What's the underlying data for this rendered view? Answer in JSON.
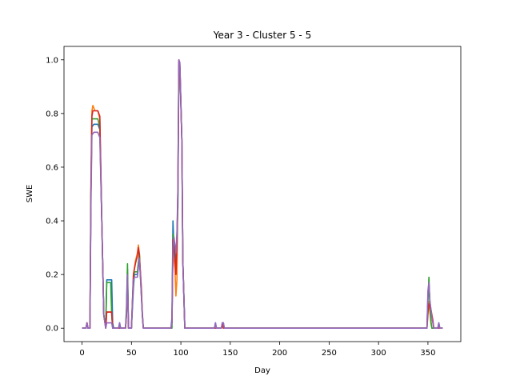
{
  "chart_data": {
    "type": "line",
    "title": "Year 3 - Cluster 5 - 5",
    "xlabel": "Day",
    "ylabel": "SWE",
    "xlim": [
      -18.25,
      383.25
    ],
    "ylim": [
      -0.05,
      1.05
    ],
    "xticks": [
      0,
      50,
      100,
      150,
      200,
      250,
      300,
      350
    ],
    "yticks": [
      0.0,
      0.2,
      0.4,
      0.6,
      0.8,
      1.0
    ],
    "xtick_labels": [
      "0",
      "50",
      "100",
      "150",
      "200",
      "250",
      "300",
      "350"
    ],
    "ytick_labels": [
      "0.0",
      "0.2",
      "0.4",
      "0.6",
      "0.8",
      "1.0"
    ],
    "grid": false,
    "series": [
      {
        "color": "#1f77b4",
        "points": [
          [
            0,
            0
          ],
          [
            4,
            0
          ],
          [
            5,
            0.02
          ],
          [
            6,
            0
          ],
          [
            8,
            0
          ],
          [
            9,
            0.5
          ],
          [
            10,
            0.75
          ],
          [
            12,
            0.76
          ],
          [
            16,
            0.76
          ],
          [
            18,
            0.74
          ],
          [
            20,
            0.4
          ],
          [
            22,
            0.05
          ],
          [
            24,
            0
          ],
          [
            25,
            0.18
          ],
          [
            26,
            0.18
          ],
          [
            30,
            0.18
          ],
          [
            31,
            0.02
          ],
          [
            32,
            0
          ],
          [
            37,
            0
          ],
          [
            38,
            0.02
          ],
          [
            39,
            0
          ],
          [
            44,
            0
          ],
          [
            45,
            0.06
          ],
          [
            46,
            0.22
          ],
          [
            47,
            0
          ],
          [
            50,
            0
          ],
          [
            52,
            0.15
          ],
          [
            53,
            0.2
          ],
          [
            56,
            0.2
          ],
          [
            58,
            0.28
          ],
          [
            59,
            0.2
          ],
          [
            61,
            0.06
          ],
          [
            62,
            0
          ],
          [
            90,
            0
          ],
          [
            91,
            0.04
          ],
          [
            92,
            0.4
          ],
          [
            93,
            0.3
          ],
          [
            95,
            0.25
          ],
          [
            97,
            0.45
          ],
          [
            98,
            0.98
          ],
          [
            99,
            0.97
          ],
          [
            101,
            0.7
          ],
          [
            102,
            0.25
          ],
          [
            104,
            0
          ],
          [
            134,
            0
          ],
          [
            135,
            0.02
          ],
          [
            136,
            0
          ],
          [
            141,
            0
          ],
          [
            142,
            0.02
          ],
          [
            143,
            0.02
          ],
          [
            144,
            0
          ],
          [
            349,
            0
          ],
          [
            350,
            0.12
          ],
          [
            351,
            0.16
          ],
          [
            352,
            0.1
          ],
          [
            354,
            0.04
          ],
          [
            356,
            0
          ],
          [
            360,
            0
          ],
          [
            361,
            0.02
          ],
          [
            362,
            0
          ],
          [
            365,
            0
          ]
        ]
      },
      {
        "color": "#ff7f0e",
        "points": [
          [
            0,
            0
          ],
          [
            4,
            0
          ],
          [
            5,
            0.02
          ],
          [
            6,
            0
          ],
          [
            8,
            0
          ],
          [
            9,
            0.55
          ],
          [
            10,
            0.81
          ],
          [
            11,
            0.83
          ],
          [
            13,
            0.81
          ],
          [
            16,
            0.81
          ],
          [
            18,
            0.78
          ],
          [
            20,
            0.4
          ],
          [
            22,
            0.05
          ],
          [
            24,
            0
          ],
          [
            25,
            0.06
          ],
          [
            26,
            0.06
          ],
          [
            30,
            0.06
          ],
          [
            31,
            0
          ],
          [
            44,
            0
          ],
          [
            45,
            0.05
          ],
          [
            46,
            0.2
          ],
          [
            47,
            0
          ],
          [
            50,
            0
          ],
          [
            52,
            0.2
          ],
          [
            54,
            0.25
          ],
          [
            56,
            0.28
          ],
          [
            57,
            0.31
          ],
          [
            58,
            0.28
          ],
          [
            60,
            0.15
          ],
          [
            61,
            0.05
          ],
          [
            62,
            0
          ],
          [
            90,
            0
          ],
          [
            91,
            0.02
          ],
          [
            92,
            0.3
          ],
          [
            94,
            0.22
          ],
          [
            95,
            0.12
          ],
          [
            96,
            0.18
          ],
          [
            97,
            0.55
          ],
          [
            98,
            1.0
          ],
          [
            99,
            0.98
          ],
          [
            101,
            0.7
          ],
          [
            102,
            0.25
          ],
          [
            104,
            0
          ],
          [
            141,
            0
          ],
          [
            142,
            0.02
          ],
          [
            143,
            0
          ],
          [
            349,
            0
          ],
          [
            350,
            0.05
          ],
          [
            351,
            0.1
          ],
          [
            352,
            0.06
          ],
          [
            354,
            0
          ],
          [
            365,
            0
          ]
        ]
      },
      {
        "color": "#2ca02c",
        "points": [
          [
            0,
            0
          ],
          [
            4,
            0
          ],
          [
            5,
            0.02
          ],
          [
            6,
            0
          ],
          [
            8,
            0
          ],
          [
            9,
            0.5
          ],
          [
            10,
            0.78
          ],
          [
            12,
            0.78
          ],
          [
            16,
            0.78
          ],
          [
            18,
            0.75
          ],
          [
            20,
            0.4
          ],
          [
            22,
            0.05
          ],
          [
            24,
            0
          ],
          [
            25,
            0.17
          ],
          [
            26,
            0.17
          ],
          [
            29,
            0.17
          ],
          [
            30,
            0.05
          ],
          [
            31,
            0
          ],
          [
            44,
            0
          ],
          [
            45,
            0.08
          ],
          [
            46,
            0.24
          ],
          [
            47,
            0
          ],
          [
            50,
            0
          ],
          [
            52,
            0.18
          ],
          [
            53,
            0.21
          ],
          [
            56,
            0.21
          ],
          [
            58,
            0.28
          ],
          [
            59,
            0.2
          ],
          [
            61,
            0.05
          ],
          [
            62,
            0
          ],
          [
            90,
            0
          ],
          [
            91,
            0
          ],
          [
            92,
            0.35
          ],
          [
            94,
            0.28
          ],
          [
            96,
            0.3
          ],
          [
            97,
            0.5
          ],
          [
            98,
            0.99
          ],
          [
            99,
            0.97
          ],
          [
            101,
            0.7
          ],
          [
            102,
            0.25
          ],
          [
            104,
            0
          ],
          [
            141,
            0
          ],
          [
            142,
            0.02
          ],
          [
            143,
            0
          ],
          [
            349,
            0
          ],
          [
            350,
            0.1
          ],
          [
            351,
            0.19
          ],
          [
            352,
            0.08
          ],
          [
            353,
            0.02
          ],
          [
            354,
            0
          ],
          [
            365,
            0
          ]
        ]
      },
      {
        "color": "#d62728",
        "points": [
          [
            0,
            0
          ],
          [
            4,
            0
          ],
          [
            5,
            0.02
          ],
          [
            6,
            0
          ],
          [
            8,
            0
          ],
          [
            9,
            0.5
          ],
          [
            10,
            0.79
          ],
          [
            11,
            0.81
          ],
          [
            16,
            0.81
          ],
          [
            18,
            0.79
          ],
          [
            20,
            0.4
          ],
          [
            22,
            0.05
          ],
          [
            24,
            0
          ],
          [
            25,
            0.06
          ],
          [
            26,
            0.06
          ],
          [
            30,
            0.06
          ],
          [
            31,
            0
          ],
          [
            44,
            0
          ],
          [
            45,
            0.05
          ],
          [
            46,
            0.18
          ],
          [
            47,
            0
          ],
          [
            50,
            0
          ],
          [
            52,
            0.2
          ],
          [
            54,
            0.24
          ],
          [
            56,
            0.27
          ],
          [
            57,
            0.3
          ],
          [
            58,
            0.27
          ],
          [
            60,
            0.15
          ],
          [
            61,
            0.05
          ],
          [
            62,
            0
          ],
          [
            90,
            0
          ],
          [
            91,
            0.02
          ],
          [
            92,
            0.33
          ],
          [
            94,
            0.26
          ],
          [
            95,
            0.2
          ],
          [
            96,
            0.3
          ],
          [
            97,
            0.52
          ],
          [
            98,
            1.0
          ],
          [
            99,
            0.98
          ],
          [
            101,
            0.7
          ],
          [
            102,
            0.25
          ],
          [
            104,
            0
          ],
          [
            141,
            0
          ],
          [
            142,
            0.02
          ],
          [
            143,
            0
          ],
          [
            349,
            0
          ],
          [
            350,
            0.06
          ],
          [
            351,
            0.09
          ],
          [
            353,
            0.07
          ],
          [
            355,
            0.03
          ],
          [
            356,
            0
          ],
          [
            365,
            0
          ]
        ]
      },
      {
        "color": "#9467bd",
        "points": [
          [
            0,
            0
          ],
          [
            4,
            0
          ],
          [
            5,
            0.02
          ],
          [
            6,
            0
          ],
          [
            8,
            0
          ],
          [
            9,
            0.45
          ],
          [
            10,
            0.72
          ],
          [
            12,
            0.73
          ],
          [
            16,
            0.73
          ],
          [
            18,
            0.71
          ],
          [
            20,
            0.4
          ],
          [
            22,
            0.05
          ],
          [
            24,
            0
          ],
          [
            25,
            0.02
          ],
          [
            26,
            0.02
          ],
          [
            30,
            0.02
          ],
          [
            31,
            0
          ],
          [
            37,
            0
          ],
          [
            38,
            0.02
          ],
          [
            39,
            0
          ],
          [
            44,
            0
          ],
          [
            45,
            0.05
          ],
          [
            46,
            0.2
          ],
          [
            47,
            0
          ],
          [
            50,
            0
          ],
          [
            52,
            0.18
          ],
          [
            53,
            0.19
          ],
          [
            56,
            0.19
          ],
          [
            58,
            0.26
          ],
          [
            59,
            0.2
          ],
          [
            61,
            0.05
          ],
          [
            62,
            0
          ],
          [
            90,
            0
          ],
          [
            91,
            0.02
          ],
          [
            92,
            0.3
          ],
          [
            93,
            0.34
          ],
          [
            95,
            0.28
          ],
          [
            96,
            0.35
          ],
          [
            97,
            0.52
          ],
          [
            98,
            1.0
          ],
          [
            99,
            0.99
          ],
          [
            101,
            0.7
          ],
          [
            102,
            0.25
          ],
          [
            104,
            0
          ],
          [
            134,
            0
          ],
          [
            135,
            0.02
          ],
          [
            136,
            0
          ],
          [
            141,
            0
          ],
          [
            142,
            0.02
          ],
          [
            143,
            0.02
          ],
          [
            144,
            0
          ],
          [
            349,
            0
          ],
          [
            350,
            0.14
          ],
          [
            351,
            0.17
          ],
          [
            352,
            0.1
          ],
          [
            354,
            0.04
          ],
          [
            356,
            0
          ],
          [
            360,
            0
          ],
          [
            361,
            0.02
          ],
          [
            362,
            0
          ],
          [
            365,
            0
          ]
        ]
      }
    ]
  }
}
